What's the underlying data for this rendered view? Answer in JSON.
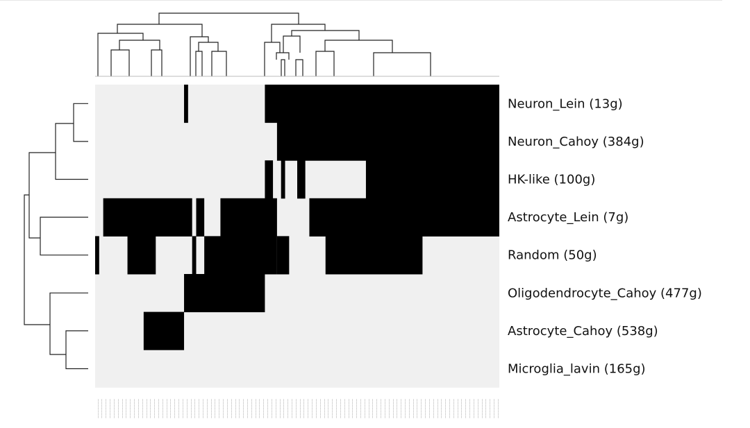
{
  "chart_data": {
    "type": "heatmap",
    "title": "",
    "xlabel": "",
    "ylabel": "",
    "rows": [
      "Neuron_Lein (13g)",
      "Neuron_Cahoy (384g)",
      "HK-like (100g)",
      "Astrocyte_Lein (7g)",
      "Random (50g)",
      "Oligodendrocyte_Cahoy (477g)",
      "Astrocyte_Cahoy (538g)",
      "Microglia_lavin (165g)"
    ],
    "n_columns": 100,
    "value_colors": {
      "0": "#f0f0f0",
      "1": "#000000"
    },
    "active_column_ranges": [
      [
        [
          22,
          23
        ],
        [
          42,
          100
        ]
      ],
      [
        [
          45,
          100
        ]
      ],
      [
        [
          42,
          44
        ],
        [
          46,
          47
        ],
        [
          50,
          52
        ],
        [
          67,
          100
        ]
      ],
      [
        [
          2,
          24
        ],
        [
          25,
          27
        ],
        [
          31,
          45
        ],
        [
          53,
          100
        ]
      ],
      [
        [
          0,
          1
        ],
        [
          8,
          15
        ],
        [
          24,
          25
        ],
        [
          27,
          45
        ],
        [
          45,
          48
        ],
        [
          57,
          81
        ]
      ],
      [
        [
          22,
          42
        ]
      ],
      [
        [
          12,
          22
        ]
      ],
      []
    ],
    "row_dendrogram": "(((Neuron_Lein,Neuron_Cahoy),HK-like),(Astrocyte_Lein,Random)),(Oligodendrocyte_Cahoy,(Astrocyte_Cahoy,Microglia_lavin))",
    "column_dendrogram": "binary tree over 100 columns; two main clusters (columns 0-42 and 42-100)",
    "legend": "none",
    "grid": false
  }
}
